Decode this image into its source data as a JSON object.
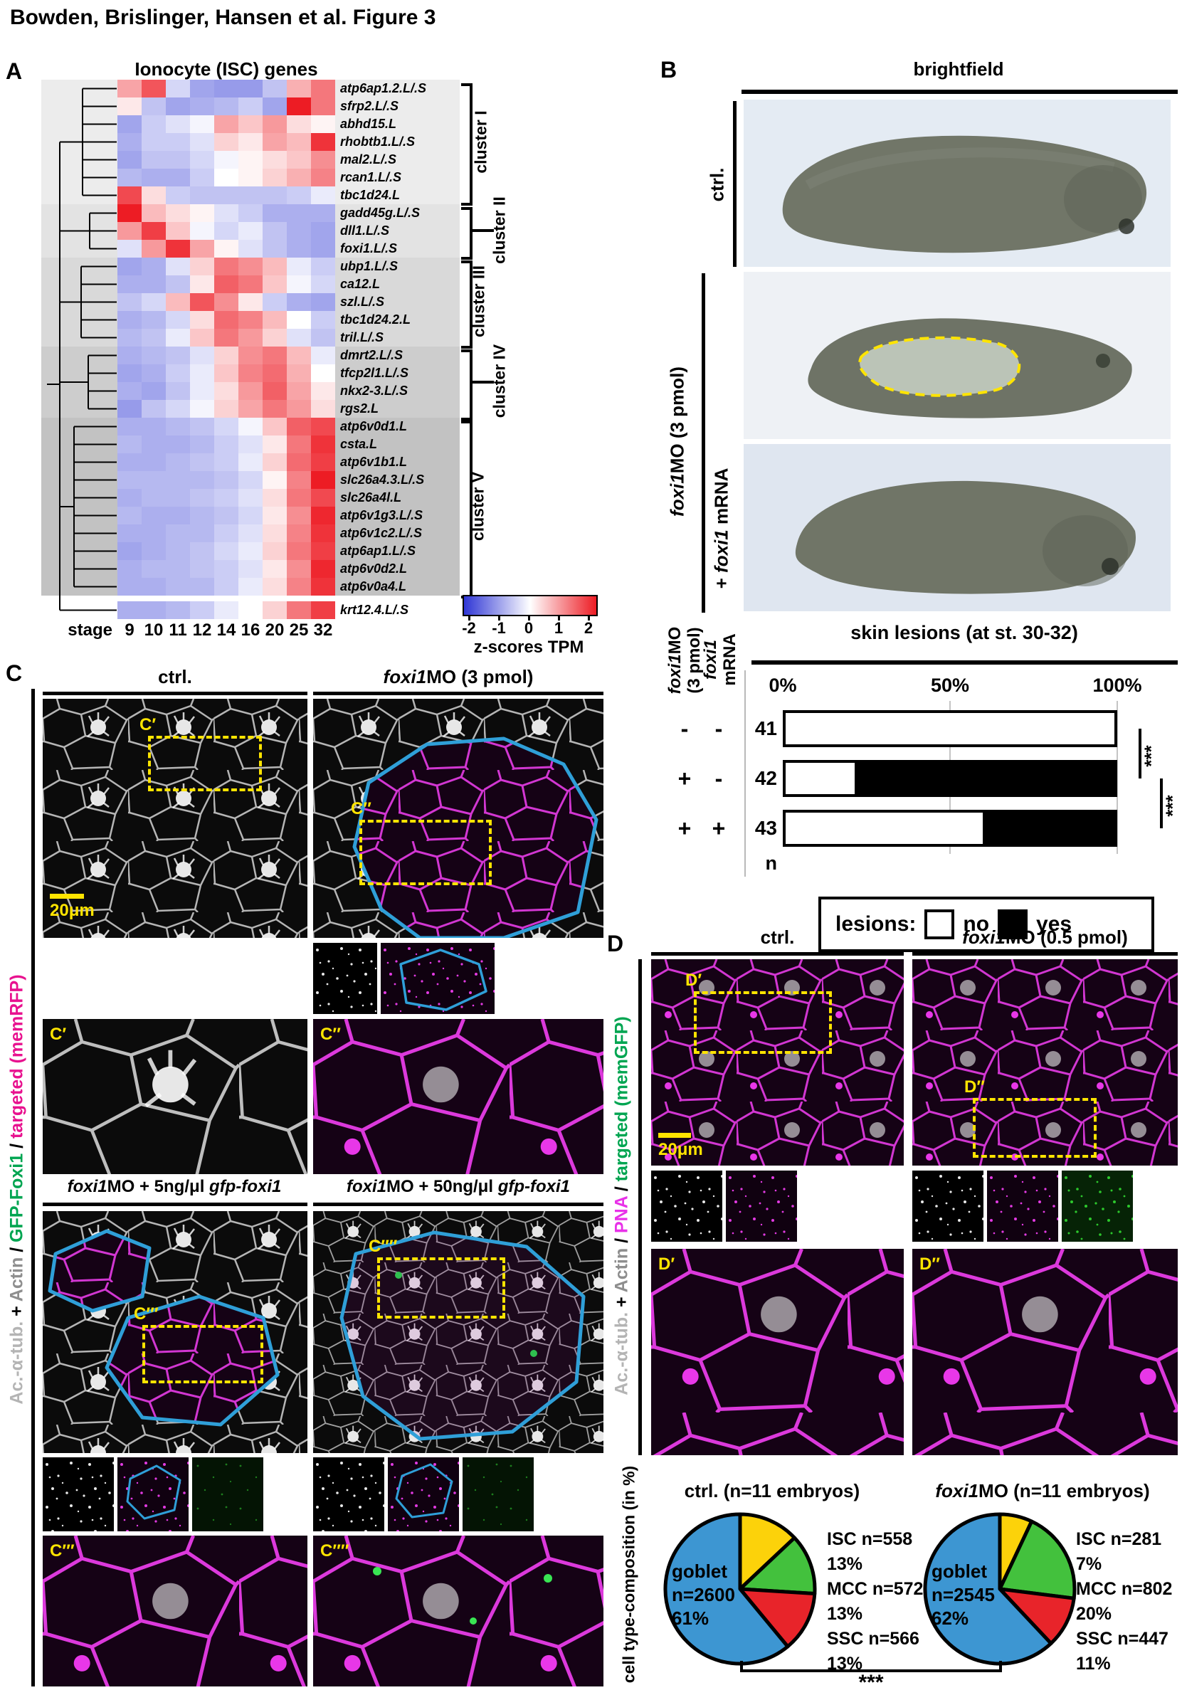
{
  "figure": {
    "title": "Bowden, Brislinger, Hansen et al. Figure 3"
  },
  "panelA": {
    "label": "A",
    "title": "Ionocyte (ISC) genes",
    "stage_label": "stage",
    "cluster_labels": [
      "cluster I",
      "cluster II",
      "cluster III",
      "cluster IV",
      "cluster V"
    ],
    "colorbar": {
      "label": "z-scores TPM",
      "ticks": [
        "-2",
        "-1",
        "0",
        "1",
        "2"
      ]
    }
  },
  "panelB": {
    "label": "B",
    "heading": "brightfield",
    "row_labels": [
      {
        "pre": "",
        "it": "",
        "rest": "ctrl."
      },
      {
        "pre": "",
        "it": "foxi1",
        "rest": "MO (3 pmol)"
      },
      {
        "pre": "+ ",
        "it": "foxi1",
        "rest": " mRNA"
      }
    ]
  },
  "panelC": {
    "label": "C",
    "col1": {
      "it": "",
      "rest": "ctrl."
    },
    "col2": {
      "it": "foxi1",
      "rest": "MO (3 pmol)"
    },
    "mid1": [
      {
        "t": "foxi1"
      },
      {
        "t": "MO + 5ng/μl "
      },
      {
        "t": "gfp-foxi1"
      }
    ],
    "mid2": [
      {
        "t": "foxi1"
      },
      {
        "t": "MO + 50ng/μl "
      },
      {
        "t": "gfp-foxi1"
      }
    ],
    "scale_label": "20μm",
    "insets": {
      "c1": "C′",
      "c2": "C′′",
      "c3": "C′′′",
      "c4": "C′′′′"
    },
    "side_parts": [
      {
        "t": "Ac.-α-tub.",
        "c": "#b4b4b4"
      },
      {
        "t": " + ",
        "c": "#000000"
      },
      {
        "t": "Actin",
        "c": "#8e8e8e"
      },
      {
        "t": " / ",
        "c": "#000000"
      },
      {
        "t": "GFP-Foxi1",
        "c": "#00a551"
      },
      {
        "t": " / ",
        "c": "#000000"
      },
      {
        "t": "targeted (memRFP)",
        "c": "#e8128f"
      }
    ]
  },
  "panelD": {
    "label": "D",
    "col1": {
      "it": "",
      "rest": "ctrl."
    },
    "col2": {
      "it": "foxi1",
      "rest": "MO (0.5 pmol)"
    },
    "scale_label": "20μm",
    "insets": {
      "d1": "D′",
      "d2": "D′′"
    },
    "side_parts": [
      {
        "t": "Ac.-α-tub.",
        "c": "#b4b4b4"
      },
      {
        "t": " + ",
        "c": "#000000"
      },
      {
        "t": "Actin",
        "c": "#8e8e8e"
      },
      {
        "t": " / ",
        "c": "#000000"
      },
      {
        "t": "PNA",
        "c": "#e831e8"
      },
      {
        "t": " / ",
        "c": "#000000"
      },
      {
        "t": "targeted (memGFP)",
        "c": "#00a551"
      }
    ],
    "pie_axis_label": "cell type-composition (in %)",
    "significance": "***"
  },
  "chart_data": [
    {
      "id": "isc_heatmap",
      "type": "heatmap",
      "title": "Ionocyte (ISC) genes",
      "xlabel": "stage",
      "x": [
        "9",
        "10",
        "11",
        "12",
        "14",
        "16",
        "20",
        "25",
        "32"
      ],
      "zlabel": "z-scores TPM",
      "zlim": [
        -2,
        2
      ],
      "rows": [
        {
          "gene": "atp6ap1.2.L/.S",
          "cluster": "I",
          "values": [
            0.8,
            1.5,
            -0.4,
            -0.9,
            -1.0,
            -1.0,
            -0.6,
            0.7,
            1.2
          ]
        },
        {
          "gene": "sfrp2.L/.S",
          "cluster": "I",
          "values": [
            0.2,
            -0.6,
            -0.9,
            -0.8,
            -0.7,
            -0.5,
            -0.9,
            2.0,
            1.2
          ]
        },
        {
          "gene": "abhd15.L",
          "cluster": "I",
          "values": [
            -0.9,
            -0.5,
            -0.3,
            -0.1,
            0.8,
            0.5,
            0.9,
            0.3,
            0.1
          ]
        },
        {
          "gene": "rhobtb1.L/.S",
          "cluster": "I",
          "values": [
            -0.8,
            -0.5,
            -0.5,
            -0.3,
            0.4,
            0.2,
            0.8,
            0.6,
            1.8
          ]
        },
        {
          "gene": "mal2.L/.S",
          "cluster": "I",
          "values": [
            -0.9,
            -0.6,
            -0.6,
            -0.4,
            -0.1,
            0.1,
            0.3,
            0.5,
            1.0
          ]
        },
        {
          "gene": "rcan1.L/.S",
          "cluster": "I",
          "values": [
            -0.7,
            -0.8,
            -0.8,
            -0.5,
            0.0,
            0.1,
            0.4,
            0.7,
            1.1
          ]
        },
        {
          "gene": "tbc1d24.L",
          "cluster": "I",
          "values": [
            1.6,
            0.3,
            -0.5,
            -0.6,
            -0.6,
            -0.6,
            -0.6,
            -0.5,
            -0.2
          ]
        },
        {
          "gene": "gadd45g.L/.S",
          "cluster": "II",
          "values": [
            2.0,
            0.6,
            0.3,
            0.1,
            -0.3,
            -0.5,
            -0.8,
            -0.8,
            -0.8
          ]
        },
        {
          "gene": "dll1.L/.S",
          "cluster": "II",
          "values": [
            0.9,
            1.7,
            0.5,
            -0.1,
            -0.4,
            -0.2,
            -0.6,
            -0.8,
            -0.9
          ]
        },
        {
          "gene": "foxi1.L/.S",
          "cluster": "II",
          "values": [
            -0.3,
            0.9,
            1.8,
            0.8,
            0.1,
            -0.3,
            -0.6,
            -0.8,
            -0.9
          ]
        },
        {
          "gene": "ubp1.L/.S",
          "cluster": "III",
          "values": [
            -0.9,
            -0.8,
            -0.3,
            0.4,
            1.2,
            1.0,
            0.6,
            -0.2,
            -0.5
          ]
        },
        {
          "gene": "ca12.L",
          "cluster": "III",
          "values": [
            -0.8,
            -0.8,
            -0.6,
            0.2,
            1.4,
            1.2,
            0.5,
            -0.1,
            -0.4
          ]
        },
        {
          "gene": "szl.L/.S",
          "cluster": "III",
          "values": [
            -0.6,
            -0.4,
            0.6,
            1.5,
            1.0,
            0.2,
            -0.5,
            -0.8,
            -0.9
          ]
        },
        {
          "gene": "tbc1d24.2.L",
          "cluster": "III",
          "values": [
            -0.8,
            -0.7,
            -0.4,
            0.3,
            1.3,
            1.1,
            0.6,
            0.0,
            -0.5
          ]
        },
        {
          "gene": "tril.L/.S",
          "cluster": "III",
          "values": [
            -0.7,
            -0.6,
            -0.2,
            0.5,
            1.2,
            0.9,
            0.4,
            -0.3,
            -0.6
          ]
        },
        {
          "gene": "dmrt2.L/.S",
          "cluster": "IV",
          "values": [
            -0.8,
            -0.7,
            -0.6,
            -0.3,
            0.4,
            1.0,
            1.2,
            0.6,
            -0.2
          ]
        },
        {
          "gene": "tfcp2l1.L/.S",
          "cluster": "IV",
          "values": [
            -0.9,
            -0.8,
            -0.5,
            -0.2,
            0.5,
            1.1,
            1.3,
            0.7,
            0.0
          ]
        },
        {
          "gene": "nkx2-3.L/.S",
          "cluster": "IV",
          "values": [
            -0.8,
            -0.9,
            -0.6,
            -0.2,
            0.3,
            0.9,
            1.4,
            0.8,
            0.2
          ]
        },
        {
          "gene": "rgs2.L",
          "cluster": "IV",
          "values": [
            -1.0,
            -0.6,
            -0.4,
            -0.1,
            0.4,
            0.8,
            1.2,
            0.9,
            0.3
          ]
        },
        {
          "gene": "atp6v0d1.L",
          "cluster": "V",
          "values": [
            -0.8,
            -0.8,
            -0.7,
            -0.6,
            -0.4,
            -0.1,
            0.5,
            1.4,
            1.6
          ]
        },
        {
          "gene": "csta.L",
          "cluster": "V",
          "values": [
            -0.7,
            -0.8,
            -0.8,
            -0.7,
            -0.5,
            -0.3,
            0.2,
            1.2,
            1.8
          ]
        },
        {
          "gene": "atp6v1b1.L",
          "cluster": "V",
          "values": [
            -0.8,
            -0.8,
            -0.7,
            -0.6,
            -0.5,
            -0.2,
            0.4,
            1.3,
            1.7
          ]
        },
        {
          "gene": "slc26a4.3.L/.S",
          "cluster": "V",
          "values": [
            -0.7,
            -0.7,
            -0.7,
            -0.7,
            -0.6,
            -0.4,
            0.1,
            1.1,
            2.0
          ]
        },
        {
          "gene": "slc26a4l.L",
          "cluster": "V",
          "values": [
            -0.8,
            -0.7,
            -0.7,
            -0.6,
            -0.5,
            -0.3,
            0.3,
            1.2,
            1.6
          ]
        },
        {
          "gene": "atp6v1g3.L/.S",
          "cluster": "V",
          "values": [
            -0.7,
            -0.8,
            -0.8,
            -0.7,
            -0.6,
            -0.4,
            0.2,
            1.0,
            1.9
          ]
        },
        {
          "gene": "atp6v1c2.L/.S",
          "cluster": "V",
          "values": [
            -0.8,
            -0.8,
            -0.7,
            -0.7,
            -0.5,
            -0.3,
            0.3,
            1.1,
            1.8
          ]
        },
        {
          "gene": "atp6ap1.L/.S",
          "cluster": "V",
          "values": [
            -0.9,
            -0.8,
            -0.7,
            -0.6,
            -0.4,
            -0.2,
            0.4,
            1.2,
            1.7
          ]
        },
        {
          "gene": "atp6v0d2.L",
          "cluster": "V",
          "values": [
            -0.8,
            -0.7,
            -0.7,
            -0.6,
            -0.5,
            -0.3,
            0.2,
            1.0,
            1.9
          ]
        },
        {
          "gene": "atp6v0a4.L",
          "cluster": "V",
          "values": [
            -0.8,
            -0.8,
            -0.7,
            -0.7,
            -0.5,
            -0.2,
            0.3,
            1.1,
            1.8
          ]
        },
        {
          "gene": "krt12.4.L/.S",
          "cluster": null,
          "values": [
            -0.8,
            -0.8,
            -0.7,
            -0.5,
            -0.2,
            0.0,
            0.4,
            1.2,
            1.7
          ]
        }
      ]
    },
    {
      "id": "skin_lesions",
      "type": "bar",
      "stacked": true,
      "orientation": "horizontal",
      "title": "skin lesions (at st. 30-32)",
      "xticks": [
        "0%",
        "50%",
        "100%"
      ],
      "xlim": [
        0,
        100
      ],
      "col_headers": [
        {
          "it": "foxi1",
          "rest": "MO",
          "line2": "(3 pmol)"
        },
        {
          "it": "foxi1",
          "rest": "",
          "line2": "mRNA"
        }
      ],
      "n_axis_label": "n",
      "rows": [
        {
          "n": "41",
          "foxi1MO": "-",
          "foxi1_mRNA": "-",
          "no_pct": 100,
          "yes_pct": 0
        },
        {
          "n": "42",
          "foxi1MO": "+",
          "foxi1_mRNA": "-",
          "no_pct": 21,
          "yes_pct": 79
        },
        {
          "n": "43",
          "foxi1MO": "+",
          "foxi1_mRNA": "+",
          "no_pct": 60,
          "yes_pct": 40
        }
      ],
      "legend": {
        "title": "lesions:",
        "no": "no",
        "yes": "yes"
      },
      "colors": {
        "no": "#ffffff",
        "yes": "#000000"
      },
      "significance": [
        "***",
        "***"
      ]
    },
    {
      "id": "pie_ctrl",
      "type": "pie",
      "title": "ctrl. (n=11 embryos)",
      "slices": [
        {
          "name": "ISC",
          "n": 558,
          "pct": 13,
          "color": "#fcd20a",
          "label_line": "ISC n=558",
          "pct_line": "13%"
        },
        {
          "name": "MCC",
          "n": 572,
          "pct": 13,
          "color": "#43c13d",
          "label_line": "MCC n=572",
          "pct_line": "13%"
        },
        {
          "name": "SSC",
          "n": 566,
          "pct": 13,
          "color": "#e8242a",
          "label_line": "SSC n=566",
          "pct_line": "13%"
        },
        {
          "name": "goblet",
          "n": 2600,
          "pct": 61,
          "color": "#3d96d2",
          "n_line": "n=2600",
          "pct_line": "61%"
        }
      ]
    },
    {
      "id": "pie_foxi1MO",
      "type": "pie",
      "title_it": "foxi1",
      "title_rest": "MO (n=11 embryos)",
      "slices": [
        {
          "name": "ISC",
          "n": 281,
          "pct": 7,
          "color": "#fcd20a",
          "label_line": "ISC n=281",
          "pct_line": "7%"
        },
        {
          "name": "MCC",
          "n": 802,
          "pct": 20,
          "color": "#43c13d",
          "label_line": "MCC n=802",
          "pct_line": "20%"
        },
        {
          "name": "SSC",
          "n": 447,
          "pct": 11,
          "color": "#e8242a",
          "label_line": "SSC n=447",
          "pct_line": "11%"
        },
        {
          "name": "goblet",
          "n": 2545,
          "pct": 62,
          "color": "#3d96d2",
          "n_line": "n=2545",
          "pct_line": "62%"
        }
      ]
    }
  ]
}
